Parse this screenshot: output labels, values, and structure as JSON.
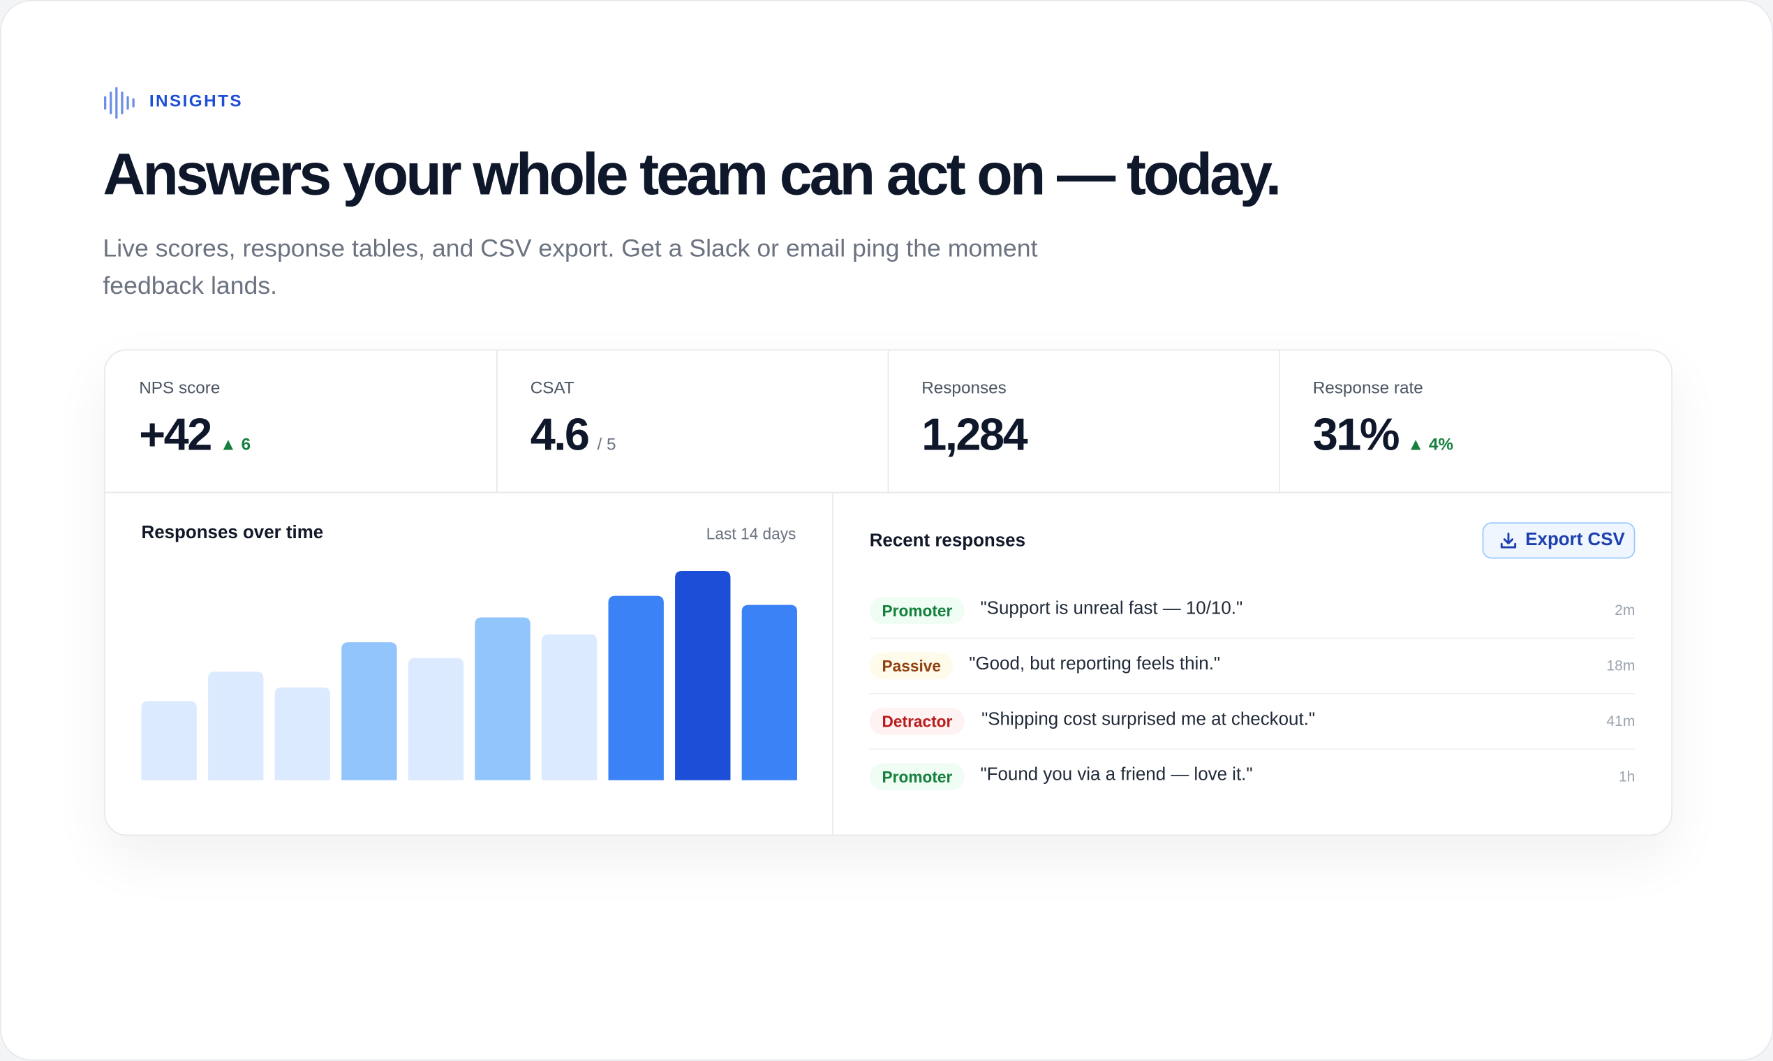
{
  "header": {
    "eyebrow": "INSIGHTS",
    "title": "Answers your whole team can act on — today.",
    "subtitle": "Live scores, response tables, and CSV export. Get a Slack or email ping the moment feedback lands."
  },
  "stats": [
    {
      "label": "NPS score",
      "value": "+42",
      "delta": "6"
    },
    {
      "label": "CSAT",
      "value": "4.6",
      "suffix": "/ 5"
    },
    {
      "label": "Responses",
      "value": "1,284"
    },
    {
      "label": "Response rate",
      "value": "31%",
      "delta": "4%"
    }
  ],
  "chart_data": {
    "type": "bar",
    "title": "Responses over time",
    "subtitle": "Last 14 days",
    "categories": [
      null,
      null,
      null,
      null,
      null,
      null,
      null,
      null,
      null,
      null
    ],
    "values": [
      70,
      96,
      82,
      122,
      108,
      144,
      129,
      163,
      185,
      155
    ],
    "colors": [
      "#dbeafe",
      "#dbeafe",
      "#dbeafe",
      "#93c5fd",
      "#dbeafe",
      "#93c5fd",
      "#dbeafe",
      "#3b82f6",
      "#1d4ed8",
      "#3b82f6"
    ]
  },
  "responses": {
    "title": "Recent responses",
    "button": "Export CSV",
    "rows": [
      {
        "tag": "Promoter",
        "quote": "\"Support is unreal fast — 10/10.\"",
        "time": "2m"
      },
      {
        "tag": "Passive",
        "quote": "\"Good, but reporting feels thin.\"",
        "time": "18m"
      },
      {
        "tag": "Detractor",
        "quote": "\"Shipping cost surprised me at checkout.\"",
        "time": "41m"
      },
      {
        "tag": "Promoter",
        "quote": "\"Found you via a friend — love it.\"",
        "time": "1h"
      }
    ]
  }
}
